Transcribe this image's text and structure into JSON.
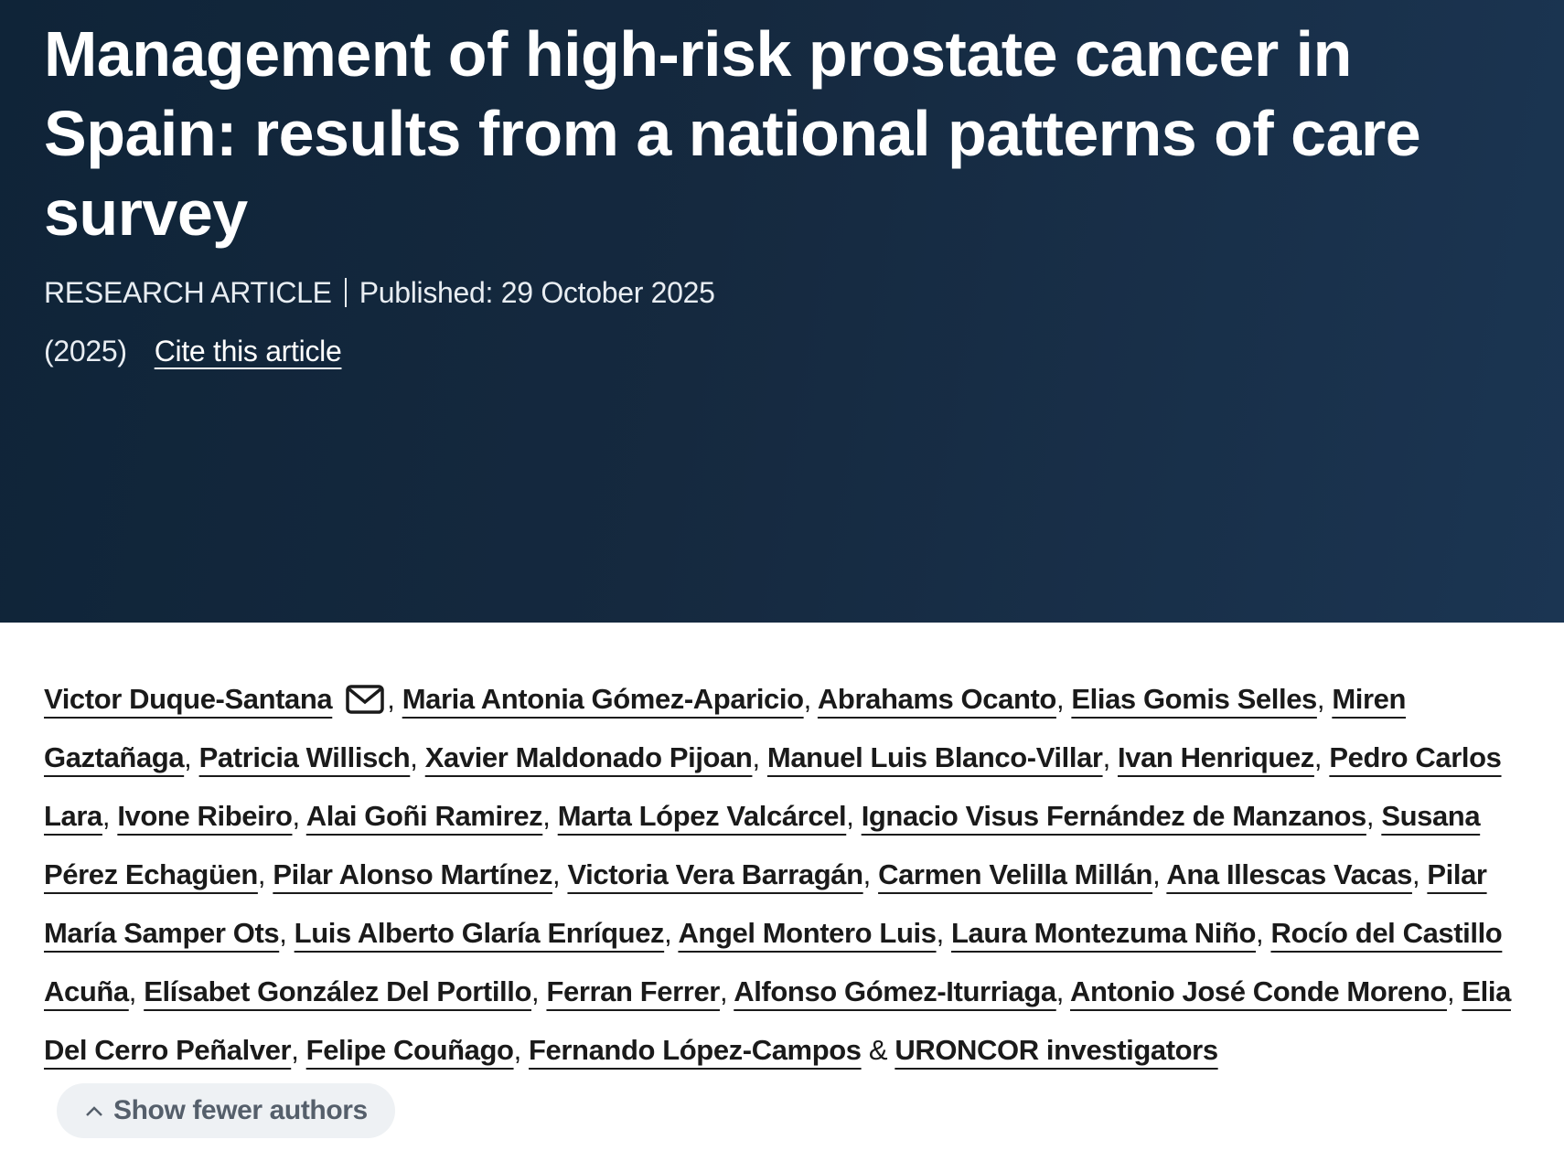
{
  "header": {
    "title": "Management of high-risk prostate cancer in Spain: results from a national patterns of care survey",
    "article_type": "RESEARCH ARTICLE",
    "published": "Published: 29 October 2025",
    "year": "(2025)",
    "cite": "Cite this article"
  },
  "authors": {
    "names": [
      "Victor Duque-Santana",
      "Maria Antonia Gómez-Aparicio",
      "Abrahams Ocanto",
      "Elias Gomis Selles",
      "Miren Gaztañaga",
      "Patricia Willisch",
      "Xavier Maldonado Pijoan",
      "Manuel Luis Blanco-Villar",
      "Ivan Henriquez",
      "Pedro Carlos Lara",
      "Ivone Ribeiro",
      "Alai Goñi Ramirez",
      "Marta López Valcárcel",
      "Ignacio Visus Fernández de Manzanos",
      "Susana Pérez Echagüen",
      "Pilar Alonso Martínez",
      "Victoria Vera Barragán",
      "Carmen Velilla Millán",
      "Ana Illescas Vacas",
      "Pilar María Samper Ots",
      "Luis Alberto Glaría Enríquez",
      "Angel Montero Luis",
      "Laura Montezuma Niño",
      "Rocío del Castillo Acuña",
      "Elísabet González Del Portillo",
      "Ferran Ferrer",
      "Alfonso Gómez-Iturriaga",
      "Antonio José Conde Moreno",
      "Elia Del Cerro Peñalver",
      "Felipe Couñago",
      "Fernando López-Campos",
      "URONCOR investigators"
    ],
    "separator": ",",
    "conjunction": "&",
    "toggle": "Show fewer authors"
  }
}
